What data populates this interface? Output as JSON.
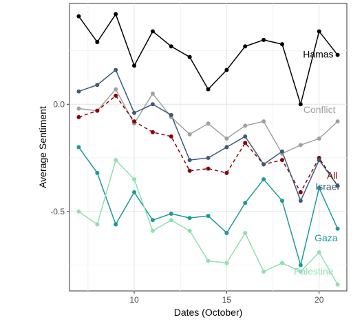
{
  "chart_data": {
    "type": "line",
    "title": "",
    "xlabel": "Dates (October)",
    "ylabel": "Average Sentiment",
    "xlim": [
      6.5,
      21.5
    ],
    "ylim": [
      -0.87,
      0.47
    ],
    "x_ticks": [
      10,
      15,
      20
    ],
    "x_tick_labels": [
      "10",
      "15",
      "20"
    ],
    "y_ticks": [
      -0.5,
      0.0
    ],
    "y_tick_labels": [
      "-0.5",
      "0.0"
    ],
    "x_minor_ticks": [
      7.5,
      12.5,
      17.5
    ],
    "y_minor_ticks": [
      -0.75,
      -0.25,
      0.25
    ],
    "grid": true,
    "legend": "direct labels at line ends",
    "x": [
      7,
      8,
      9,
      10,
      11,
      12,
      13,
      14,
      15,
      16,
      17,
      18,
      19,
      20,
      21
    ],
    "series": [
      {
        "name": "Hamas",
        "color": "#000000",
        "dashed": false,
        "values": [
          0.41,
          0.29,
          0.42,
          0.18,
          0.34,
          0.27,
          0.22,
          0.07,
          0.16,
          0.27,
          0.3,
          0.28,
          0.0,
          0.34,
          0.23
        ]
      },
      {
        "name": "Conflict",
        "color": "#a0a0a0",
        "dashed": false,
        "values": [
          -0.02,
          -0.03,
          0.07,
          -0.09,
          0.05,
          -0.06,
          -0.14,
          -0.09,
          -0.16,
          -0.1,
          -0.08,
          -0.23,
          -0.19,
          -0.16,
          -0.08
        ]
      },
      {
        "name": "All",
        "color": "#8b0000",
        "dashed": true,
        "values": [
          -0.06,
          -0.03,
          0.04,
          -0.08,
          -0.13,
          -0.15,
          -0.31,
          -0.3,
          -0.32,
          -0.18,
          -0.28,
          -0.26,
          -0.41,
          -0.25,
          -0.38
        ]
      },
      {
        "name": "Israel",
        "color": "#3b5a7d",
        "dashed": false,
        "values": [
          0.06,
          0.09,
          0.16,
          -0.04,
          0.0,
          -0.05,
          -0.26,
          -0.25,
          -0.2,
          -0.15,
          -0.28,
          -0.22,
          -0.45,
          -0.26,
          -0.38
        ]
      },
      {
        "name": "Gaza",
        "color": "#1a9a9a",
        "dashed": false,
        "values": [
          -0.2,
          -0.32,
          -0.56,
          -0.41,
          -0.54,
          -0.51,
          -0.53,
          -0.52,
          -0.6,
          -0.46,
          -0.35,
          -0.45,
          -0.75,
          -0.39,
          -0.58
        ]
      },
      {
        "name": "Palestine",
        "color": "#8fe0b0",
        "dashed": false,
        "values": [
          -0.5,
          -0.56,
          -0.26,
          -0.35,
          -0.59,
          -0.54,
          -0.59,
          -0.73,
          -0.74,
          -0.6,
          -0.78,
          -0.74,
          -0.78,
          -0.69,
          -0.84
        ]
      }
    ]
  }
}
